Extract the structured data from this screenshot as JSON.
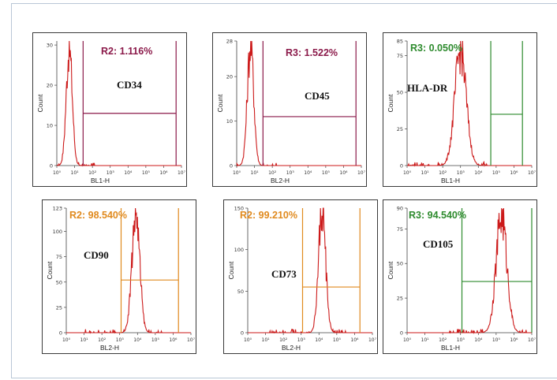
{
  "chart_data": [
    {
      "type": "histogram",
      "marker": "CD34",
      "gate": "R2: 1.116%",
      "gate_color": "#8b1a4a",
      "xlabel": "BL1-H",
      "ylabel": "Count",
      "x_scale": "log",
      "xlim": [
        1,
        10000000
      ],
      "ylim": [
        0,
        31
      ],
      "yticks": [
        0,
        10,
        20,
        30
      ],
      "xticks": [
        "10⁰",
        "10¹",
        "10²",
        "10³",
        "10⁴",
        "10⁵",
        "10⁶",
        "10⁷"
      ],
      "peak": {
        "x": 5,
        "height": 29,
        "width": 0.17
      },
      "gate_range": [
        30,
        5000000
      ],
      "gate_level": 13
    },
    {
      "type": "histogram",
      "marker": "CD45",
      "gate": "R3: 1.522%",
      "gate_color": "#8b1a4a",
      "xlabel": "BL2-H",
      "ylabel": "Count",
      "x_scale": "log",
      "xlim": [
        1,
        10000000
      ],
      "ylim": [
        0,
        28
      ],
      "yticks": [
        0,
        10,
        20,
        28
      ],
      "xticks": [
        "10⁰",
        "10¹",
        "10²",
        "10³",
        "10⁴",
        "10⁵",
        "10⁶",
        "10⁷"
      ],
      "peak": {
        "x": 6,
        "height": 27,
        "width": 0.18
      },
      "gate_range": [
        30,
        5000000
      ],
      "gate_level": 11
    },
    {
      "type": "histogram",
      "marker": "HLA-DR",
      "gate": "R3: 0.050%",
      "gate_color": "#2e8b2e",
      "xlabel": "BL1-H",
      "ylabel": "Count",
      "x_scale": "log",
      "xlim": [
        1,
        10000000
      ],
      "ylim": [
        0,
        85
      ],
      "yticks": [
        0,
        25,
        50,
        75,
        85
      ],
      "xticks": [
        "10⁰",
        "10¹",
        "10²",
        "10³",
        "10⁴",
        "10⁵",
        "10⁶",
        "10⁷"
      ],
      "peak": {
        "x": 1000,
        "height": 78,
        "width": 0.32
      },
      "gate_range": [
        50000,
        3000000
      ],
      "gate_level": 35
    },
    {
      "type": "histogram",
      "marker": "CD90",
      "gate": "R2: 98.540%",
      "gate_color": "#e08a1e",
      "xlabel": "BL2-H",
      "ylabel": "Count",
      "x_scale": "log",
      "xlim": [
        1,
        10000000
      ],
      "ylim": [
        0,
        123
      ],
      "yticks": [
        0,
        25,
        50,
        75,
        100,
        123
      ],
      "xticks": [
        "10⁰",
        "10¹",
        "10²",
        "10³",
        "10⁴",
        "10⁵",
        "10⁶",
        "10⁷"
      ],
      "peak": {
        "x": 8000,
        "height": 118,
        "width": 0.22
      },
      "gate_range": [
        1200,
        2000000
      ],
      "gate_level": 52
    },
    {
      "type": "histogram",
      "marker": "CD73",
      "gate": "R2: 99.210%",
      "gate_color": "#e08a1e",
      "xlabel": "BL2-H",
      "ylabel": "Count",
      "x_scale": "log",
      "xlim": [
        1,
        10000000
      ],
      "ylim": [
        0,
        150
      ],
      "yticks": [
        0,
        50,
        100,
        150
      ],
      "xticks": [
        "10⁰",
        "10¹",
        "10²",
        "10³",
        "10⁴",
        "10⁵",
        "10⁶",
        "10⁷"
      ],
      "peak": {
        "x": 15000,
        "height": 146,
        "width": 0.2
      },
      "gate_range": [
        1200,
        2000000
      ],
      "gate_level": 55
    },
    {
      "type": "histogram",
      "marker": "CD105",
      "gate": "R3: 94.540%",
      "gate_color": "#2e8b2e",
      "xlabel": "BL1-H",
      "ylabel": "Count",
      "x_scale": "log",
      "xlim": [
        1,
        10000000
      ],
      "ylim": [
        0,
        90
      ],
      "yticks": [
        0,
        25,
        50,
        75,
        90
      ],
      "xticks": [
        "10⁰",
        "10¹",
        "10²",
        "10³",
        "10⁴",
        "10⁵",
        "10⁶",
        "10⁷"
      ],
      "peak": {
        "x": 200000,
        "height": 85,
        "width": 0.3
      },
      "gate_range": [
        1200,
        10000000
      ],
      "gate_level": 37
    }
  ],
  "histogram_color": "#cc1a1a"
}
